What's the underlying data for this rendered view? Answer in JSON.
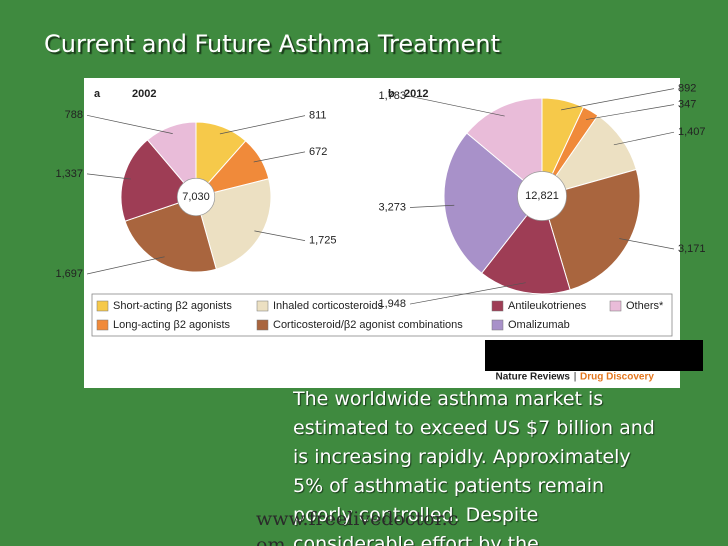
{
  "slide": {
    "title": "Current and Future Asthma Treatment",
    "body": [
      "The worldwide asthma market is",
      "estimated to exceed US $7 billion and",
      "is increasing rapidly. Approximately",
      "5% of asthmatic patients remain",
      "poorly controlled. Despite",
      "considerable effort by the"
    ],
    "source": {
      "journal": "Nature Reviews",
      "separator": "|",
      "section": "Drug Discovery"
    },
    "watermark": [
      "www.freelivedoctor.c",
      "om"
    ]
  },
  "chart_data": [
    {
      "type": "pie",
      "panel": "a",
      "title": "2002",
      "center_label": "7,030",
      "categories": [
        "Short-acting β2 agonists",
        "Long-acting β2 agonists",
        "Inhaled corticosteroids",
        "Corticosteroid/β2 agonist combinations",
        "Antileukotrienes",
        "Others*"
      ],
      "values": [
        811,
        672,
        1725,
        1697,
        1337,
        788
      ],
      "value_labels": [
        "811",
        "672",
        "1,725",
        "1,697",
        "1,337",
        "788"
      ],
      "colors": [
        "#f6c94a",
        "#f08a3a",
        "#ece0c2",
        "#a9653e",
        "#9e3d55",
        "#e9bcd9"
      ]
    },
    {
      "type": "pie",
      "panel": "b",
      "title": "2012",
      "center_label": "12,821",
      "categories": [
        "Short-acting β2 agonists",
        "Long-acting β2 agonists",
        "Inhaled corticosteroids",
        "Corticosteroid/β2 agonist combinations",
        "Antileukotrienes",
        "Omalizumab",
        "Others*"
      ],
      "values": [
        892,
        347,
        1407,
        3171,
        1948,
        3273,
        1783
      ],
      "value_labels": [
        "892",
        "347",
        "1,407",
        "3,171",
        "1,948",
        "3,273",
        "1,783"
      ],
      "colors": [
        "#f6c94a",
        "#f08a3a",
        "#ece0c2",
        "#a9653e",
        "#9e3d55",
        "#a891c9",
        "#e9bcd9"
      ]
    }
  ]
}
